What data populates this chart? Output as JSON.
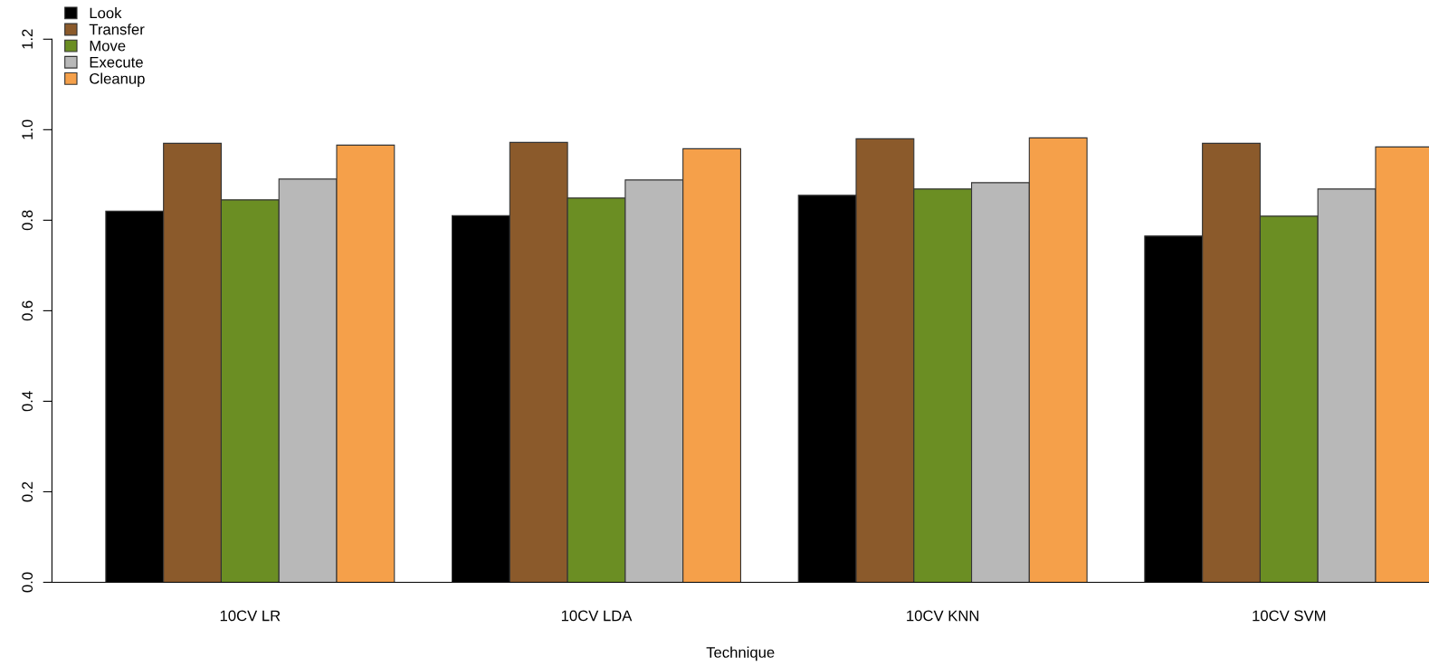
{
  "chart_data": {
    "type": "bar",
    "xlabel": "Technique",
    "categories": [
      "10CV LR",
      "10CV LDA",
      "10CV KNN",
      "10CV SVM"
    ],
    "series": [
      {
        "name": "Look",
        "color": "#000000",
        "values": [
          0.82,
          0.81,
          0.855,
          0.765
        ]
      },
      {
        "name": "Transfer",
        "color": "#8b5a2b",
        "values": [
          0.97,
          0.972,
          0.98,
          0.97
        ]
      },
      {
        "name": "Move",
        "color": "#6b8e23",
        "values": [
          0.845,
          0.849,
          0.869,
          0.809
        ]
      },
      {
        "name": "Execute",
        "color": "#b8b8b8",
        "values": [
          0.891,
          0.889,
          0.883,
          0.869
        ]
      },
      {
        "name": "Cleanup",
        "color": "#f5a04a",
        "values": [
          0.966,
          0.958,
          0.982,
          0.962
        ]
      }
    ],
    "ylim": [
      0,
      1.2
    ],
    "yticks": [
      {
        "value": 0,
        "label": "0.0"
      },
      {
        "value": 0.2,
        "label": "0.2"
      },
      {
        "value": 0.4,
        "label": "0.4"
      },
      {
        "value": 0.6,
        "label": "0.6"
      },
      {
        "value": 0.8,
        "label": "0.8"
      },
      {
        "value": 1.0,
        "label": "1.0"
      },
      {
        "value": 1.2,
        "label": "1.2"
      }
    ],
    "legend": "top left",
    "grid": false
  }
}
